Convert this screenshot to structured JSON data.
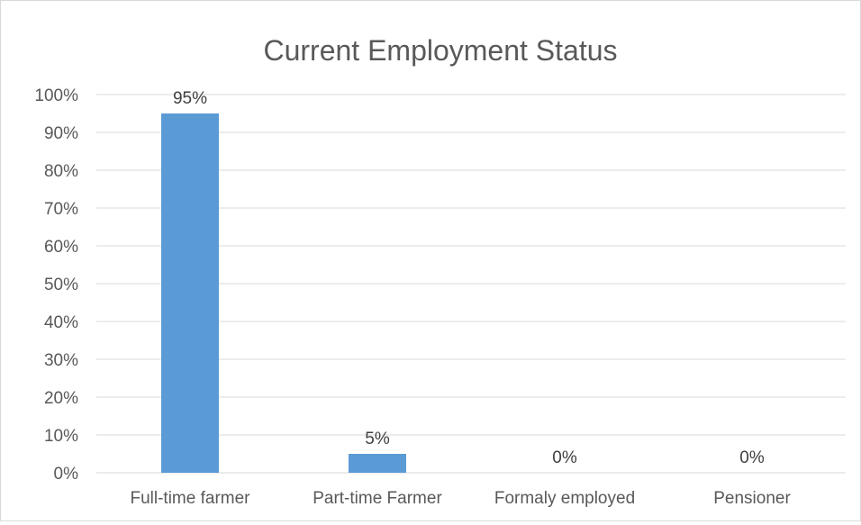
{
  "chart_data": {
    "type": "bar",
    "title": "Current Employment Status",
    "xlabel": "",
    "ylabel": "",
    "categories": [
      "Full-time farmer",
      "Part-time Farmer",
      "Formaly employed",
      "Pensioner"
    ],
    "values": [
      95,
      5,
      0,
      0
    ],
    "data_labels": [
      "95%",
      "5%",
      "0%",
      "0%"
    ],
    "ylim": [
      0,
      100
    ],
    "yticks": [
      "0%",
      "10%",
      "20%",
      "30%",
      "40%",
      "50%",
      "60%",
      "70%",
      "80%",
      "90%",
      "100%"
    ],
    "grid": true,
    "legend": "none",
    "bar_color": "#5b9bd5"
  }
}
